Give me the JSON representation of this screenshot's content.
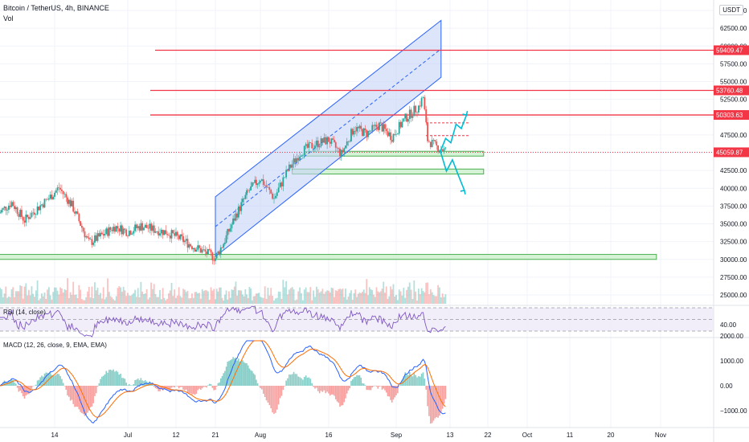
{
  "header": {
    "symbol_line": "Bitcoin / TetherUS, 4h, BINANCE",
    "volume_label": "Vol",
    "currency_button": "USDT"
  },
  "panes": {
    "rsi_title": "RSI (14, close)",
    "macd_title": "MACD (12, 26, close, 9, EMA, EMA)"
  },
  "colors": {
    "up": "#26a69a",
    "down": "#ef5350",
    "level_line": "#f23645",
    "channel_fill": "#c5d3f6",
    "channel_stroke": "#2962ff",
    "zone_fill": "#c8efc8",
    "zone_stroke": "#4caf50",
    "projection": "#00bcd4",
    "rsi_line": "#7e57c2",
    "macd_line": "#2962ff",
    "signal_line": "#ff6d00"
  },
  "chart_data": {
    "type": "candlestick",
    "title": "Bitcoin / TetherUS, 4h, BINANCE",
    "y_axis": {
      "ticks": [
        25000,
        27500,
        30000,
        32500,
        35000,
        37500,
        40000,
        42500,
        45000,
        47500,
        50000,
        52500,
        55000,
        57500,
        60000,
        62500,
        65000
      ],
      "tick_labels": [
        "25000.00",
        "27500.00",
        "30000.00",
        "32500.00",
        "35000.00",
        "37500.00",
        "40000.00",
        "42500.00",
        "45000.00",
        "47500.00",
        "50000.00",
        "52500.00",
        "55000.00",
        "57500.00",
        "60000.00",
        "62500.00",
        "65000.00"
      ],
      "range": [
        23500,
        66000
      ]
    },
    "x_axis": {
      "tick_labels": [
        "14",
        "Jul",
        "12",
        "21",
        "Aug",
        "16",
        "Sep",
        "13",
        "22",
        "Oct",
        "11",
        "20",
        "Nov"
      ],
      "tick_dates": [
        "2021-06-14",
        "2021-07-01",
        "2021-07-12",
        "2021-07-21",
        "2021-08-01",
        "2021-08-16",
        "2021-09-01",
        "2021-09-13",
        "2021-09-22",
        "2021-10-01",
        "2021-10-11",
        "2021-10-20",
        "2021-11-01"
      ]
    },
    "price_path": [
      {
        "date": "2021-06-01",
        "price": 36500
      },
      {
        "date": "2021-06-04",
        "price": 38000
      },
      {
        "date": "2021-06-07",
        "price": 35500
      },
      {
        "date": "2021-06-10",
        "price": 37200
      },
      {
        "date": "2021-06-13",
        "price": 38800
      },
      {
        "date": "2021-06-15",
        "price": 40100
      },
      {
        "date": "2021-06-18",
        "price": 37600
      },
      {
        "date": "2021-06-22",
        "price": 32300
      },
      {
        "date": "2021-06-25",
        "price": 33400
      },
      {
        "date": "2021-06-28",
        "price": 34600
      },
      {
        "date": "2021-07-01",
        "price": 33900
      },
      {
        "date": "2021-07-04",
        "price": 34700
      },
      {
        "date": "2021-07-07",
        "price": 34200
      },
      {
        "date": "2021-07-10",
        "price": 33800
      },
      {
        "date": "2021-07-13",
        "price": 32900
      },
      {
        "date": "2021-07-16",
        "price": 31800
      },
      {
        "date": "2021-07-19",
        "price": 30900
      },
      {
        "date": "2021-07-21",
        "price": 30200
      },
      {
        "date": "2021-07-23",
        "price": 32300
      },
      {
        "date": "2021-07-26",
        "price": 36200
      },
      {
        "date": "2021-07-29",
        "price": 39500
      },
      {
        "date": "2021-08-01",
        "price": 41400
      },
      {
        "date": "2021-08-04",
        "price": 38600
      },
      {
        "date": "2021-08-07",
        "price": 42500
      },
      {
        "date": "2021-08-10",
        "price": 45200
      },
      {
        "date": "2021-08-13",
        "price": 46200
      },
      {
        "date": "2021-08-16",
        "price": 46800
      },
      {
        "date": "2021-08-19",
        "price": 44800
      },
      {
        "date": "2021-08-22",
        "price": 48500
      },
      {
        "date": "2021-08-25",
        "price": 47700
      },
      {
        "date": "2021-08-28",
        "price": 48900
      },
      {
        "date": "2021-08-31",
        "price": 47200
      },
      {
        "date": "2021-09-03",
        "price": 49800
      },
      {
        "date": "2021-09-06",
        "price": 51500
      },
      {
        "date": "2021-09-07",
        "price": 52800
      },
      {
        "date": "2021-09-08",
        "price": 46800
      },
      {
        "date": "2021-09-10",
        "price": 45800
      },
      {
        "date": "2021-09-12",
        "price": 45300
      }
    ],
    "horizontal_levels": [
      {
        "price": 59409.47,
        "label": "59409.47"
      },
      {
        "price": 53760.48,
        "label": "53760.48"
      },
      {
        "price": 50303.63,
        "label": "50303.63"
      }
    ],
    "last_price": {
      "price": 45059.87,
      "label": "45059.87"
    },
    "support_zones": [
      {
        "low": 44600,
        "high": 45200,
        "from": "2021-08-11",
        "to": "2021-09-21"
      },
      {
        "low": 42000,
        "high": 42700,
        "from": "2021-08-08",
        "to": "2021-09-21"
      },
      {
        "low": 30000,
        "high": 30700,
        "from": "2021-06-01",
        "to": "2021-10-31"
      }
    ],
    "rising_channel": {
      "lower_start": {
        "date": "2021-07-21",
        "price": 30400
      },
      "lower_end": {
        "date": "2021-09-11",
        "price": 55600
      },
      "upper_start": {
        "date": "2021-07-21",
        "price": 38800
      },
      "upper_end": {
        "date": "2021-09-11",
        "price": 63600
      }
    },
    "projections": {
      "bullish": [
        {
          "date": "2021-09-10",
          "price": 45200
        },
        {
          "date": "2021-09-11",
          "price": 47000
        },
        {
          "date": "2021-09-12",
          "price": 46400
        },
        {
          "date": "2021-09-13",
          "price": 49000
        },
        {
          "date": "2021-09-14",
          "price": 48400
        },
        {
          "date": "2021-09-15",
          "price": 50300
        }
      ],
      "bearish": [
        {
          "date": "2021-09-10",
          "price": 45200
        },
        {
          "date": "2021-09-11",
          "price": 42400
        },
        {
          "date": "2021-09-12",
          "price": 44000
        },
        {
          "date": "2021-09-13",
          "price": 41800
        },
        {
          "date": "2021-09-14",
          "price": 39700
        }
      ]
    },
    "rsi": {
      "ticks": [
        40
      ],
      "tick_labels": [
        "40.00"
      ],
      "bands": [
        30,
        70
      ]
    },
    "macd": {
      "ticks": [
        2000,
        1000,
        0,
        -1000
      ],
      "tick_labels": [
        "2000.00",
        "1000.00",
        "0.00",
        "−1000.00"
      ]
    },
    "grid": true
  }
}
